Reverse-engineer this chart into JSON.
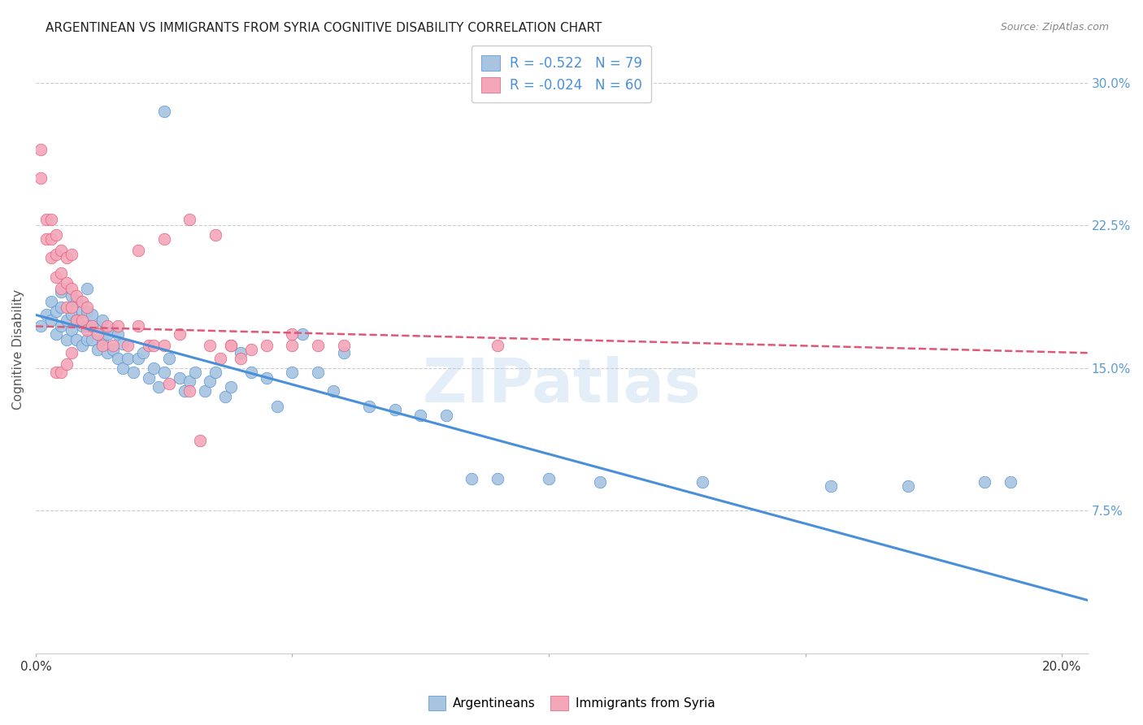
{
  "title": "ARGENTINEAN VS IMMIGRANTS FROM SYRIA COGNITIVE DISABILITY CORRELATION CHART",
  "source": "Source: ZipAtlas.com",
  "ylabel": "Cognitive Disability",
  "xlim": [
    0.0,
    0.205
  ],
  "ylim": [
    0.0,
    0.32
  ],
  "yticks": [
    0.075,
    0.15,
    0.225,
    0.3
  ],
  "ytick_labels": [
    "7.5%",
    "15.0%",
    "22.5%",
    "30.0%"
  ],
  "xticks": [
    0.0,
    0.05,
    0.1,
    0.15,
    0.2
  ],
  "xtick_labels": [
    "0.0%",
    "",
    "",
    "",
    "20.0%"
  ],
  "legend_r_blue": "-0.522",
  "legend_n_blue": "79",
  "legend_r_pink": "-0.024",
  "legend_n_pink": "60",
  "blue_color": "#a8c4e0",
  "pink_color": "#f4a7b9",
  "line_blue": "#4a90d9",
  "line_pink": "#e05878",
  "watermark": "ZIPatlas",
  "blue_scatter_x": [
    0.001,
    0.002,
    0.003,
    0.003,
    0.004,
    0.004,
    0.005,
    0.005,
    0.005,
    0.006,
    0.006,
    0.007,
    0.007,
    0.007,
    0.008,
    0.008,
    0.008,
    0.009,
    0.009,
    0.009,
    0.01,
    0.01,
    0.01,
    0.01,
    0.011,
    0.011,
    0.012,
    0.012,
    0.013,
    0.013,
    0.014,
    0.014,
    0.015,
    0.015,
    0.016,
    0.016,
    0.017,
    0.017,
    0.018,
    0.019,
    0.02,
    0.021,
    0.022,
    0.023,
    0.024,
    0.025,
    0.026,
    0.028,
    0.029,
    0.03,
    0.031,
    0.033,
    0.034,
    0.035,
    0.037,
    0.038,
    0.04,
    0.042,
    0.045,
    0.047,
    0.05,
    0.052,
    0.055,
    0.058,
    0.06,
    0.065,
    0.07,
    0.075,
    0.08,
    0.085,
    0.09,
    0.1,
    0.11,
    0.13,
    0.155,
    0.17,
    0.185,
    0.19,
    0.025
  ],
  "blue_scatter_y": [
    0.172,
    0.178,
    0.175,
    0.185,
    0.168,
    0.18,
    0.172,
    0.182,
    0.19,
    0.165,
    0.175,
    0.17,
    0.178,
    0.188,
    0.165,
    0.175,
    0.185,
    0.162,
    0.172,
    0.18,
    0.165,
    0.172,
    0.18,
    0.192,
    0.165,
    0.178,
    0.16,
    0.172,
    0.165,
    0.175,
    0.158,
    0.168,
    0.16,
    0.17,
    0.155,
    0.168,
    0.15,
    0.163,
    0.155,
    0.148,
    0.155,
    0.158,
    0.145,
    0.15,
    0.14,
    0.148,
    0.155,
    0.145,
    0.138,
    0.143,
    0.148,
    0.138,
    0.143,
    0.148,
    0.135,
    0.14,
    0.158,
    0.148,
    0.145,
    0.13,
    0.148,
    0.168,
    0.148,
    0.138,
    0.158,
    0.13,
    0.128,
    0.125,
    0.125,
    0.092,
    0.092,
    0.092,
    0.09,
    0.09,
    0.088,
    0.088,
    0.09,
    0.09,
    0.285
  ],
  "pink_scatter_x": [
    0.001,
    0.001,
    0.002,
    0.002,
    0.003,
    0.003,
    0.003,
    0.004,
    0.004,
    0.004,
    0.005,
    0.005,
    0.005,
    0.006,
    0.006,
    0.006,
    0.007,
    0.007,
    0.007,
    0.008,
    0.008,
    0.009,
    0.009,
    0.01,
    0.01,
    0.011,
    0.012,
    0.013,
    0.014,
    0.015,
    0.016,
    0.018,
    0.02,
    0.022,
    0.023,
    0.025,
    0.026,
    0.028,
    0.03,
    0.032,
    0.034,
    0.036,
    0.038,
    0.04,
    0.042,
    0.045,
    0.05,
    0.055,
    0.06,
    0.09,
    0.004,
    0.005,
    0.006,
    0.007,
    0.02,
    0.025,
    0.03,
    0.035,
    0.038,
    0.05
  ],
  "pink_scatter_y": [
    0.25,
    0.265,
    0.218,
    0.228,
    0.208,
    0.218,
    0.228,
    0.198,
    0.21,
    0.22,
    0.192,
    0.2,
    0.212,
    0.182,
    0.195,
    0.208,
    0.182,
    0.192,
    0.21,
    0.175,
    0.188,
    0.175,
    0.185,
    0.17,
    0.182,
    0.172,
    0.168,
    0.162,
    0.172,
    0.162,
    0.172,
    0.162,
    0.172,
    0.162,
    0.162,
    0.162,
    0.142,
    0.168,
    0.138,
    0.112,
    0.162,
    0.155,
    0.162,
    0.155,
    0.16,
    0.162,
    0.162,
    0.162,
    0.162,
    0.162,
    0.148,
    0.148,
    0.152,
    0.158,
    0.212,
    0.218,
    0.228,
    0.22,
    0.162,
    0.168
  ],
  "blue_line_x": [
    0.0,
    0.205
  ],
  "blue_line_y": [
    0.178,
    0.028
  ],
  "pink_line_x": [
    0.0,
    0.205
  ],
  "pink_line_y": [
    0.172,
    0.158
  ],
  "background_color": "#ffffff",
  "grid_color": "#cccccc",
  "title_color": "#222222",
  "axis_label_color": "#555555",
  "tick_color_right": "#5b9bd5",
  "tick_color_bottom": "#333333"
}
